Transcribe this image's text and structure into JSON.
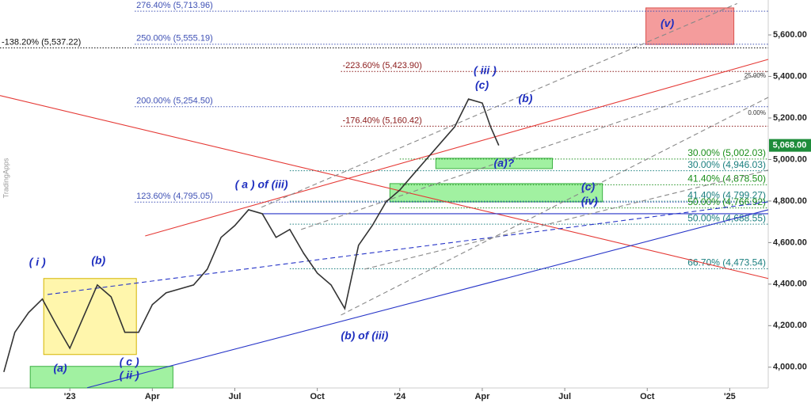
{
  "chart_data": {
    "type": "line",
    "watermark": "TradingApps",
    "xlim": [
      -2.54,
      25.4
    ],
    "ylim": [
      3900,
      5768
    ],
    "xticks": [
      {
        "value": 0,
        "label": "'23"
      },
      {
        "value": 3,
        "label": "Apr"
      },
      {
        "value": 6,
        "label": "Jul"
      },
      {
        "value": 9,
        "label": "Oct"
      },
      {
        "value": 12,
        "label": "'24"
      },
      {
        "value": 15,
        "label": "Apr"
      },
      {
        "value": 18,
        "label": "Jul"
      },
      {
        "value": 21,
        "label": "Oct"
      },
      {
        "value": 24,
        "label": "'25"
      }
    ],
    "yticks": [
      {
        "value": 4000,
        "label": "4,000.00"
      },
      {
        "value": 4200,
        "label": "4,200.00"
      },
      {
        "value": 4400,
        "label": "4,400.00"
      },
      {
        "value": 4600,
        "label": "4,600.00"
      },
      {
        "value": 4800,
        "label": "4,800.00"
      },
      {
        "value": 5000,
        "label": "5,000.00"
      },
      {
        "value": 5200,
        "label": "5,200.00"
      },
      {
        "value": 5400,
        "label": "5,400.00"
      },
      {
        "value": 5600,
        "label": "5,600.00"
      }
    ],
    "color": "#333333",
    "x": [
      -2.4,
      -2.0,
      -1.5,
      -1.0,
      -0.5,
      0,
      0.5,
      1.0,
      1.5,
      2.0,
      2.5,
      3.0,
      3.5,
      4.0,
      4.5,
      5.0,
      5.5,
      6.0,
      6.5,
      7.0,
      7.5,
      8.0,
      8.5,
      9.0,
      9.5,
      10.0,
      10.5,
      11.0,
      11.5,
      12.0,
      12.5,
      13.0,
      13.5,
      14.0,
      14.5,
      15.0,
      15.3,
      15.6
    ],
    "values": [
      3977,
      4168,
      4263,
      4328,
      4206,
      4091,
      4244,
      4396,
      4339,
      4168,
      4168,
      4301,
      4358,
      4377,
      4396,
      4472,
      4625,
      4682,
      4758,
      4739,
      4625,
      4663,
      4549,
      4453,
      4396,
      4282,
      4587,
      4682,
      4796,
      4853,
      4930,
      5006,
      5082,
      5158,
      5291,
      5272,
      5158,
      5068
    ],
    "last_price": {
      "value": 5068,
      "label": "5,068.00",
      "color": "#1e8c3a"
    },
    "levels": [
      {
        "label": "276.40% (5,713.96)",
        "value": 5713.96,
        "color": "#3f51b5",
        "from": 2.36,
        "align": "left"
      },
      {
        "label": "250.00% (5,555.19)",
        "value": 5555.19,
        "color": "#3f51b5",
        "from": 2.36,
        "align": "left"
      },
      {
        "label": "-138.20% (5,537.22)",
        "value": 5537.22,
        "color": "#111111",
        "from": -2.54,
        "align": "left"
      },
      {
        "label": "-223.60% (5,423.90)",
        "value": 5423.9,
        "color": "#8b1a1a",
        "from": 9.86,
        "align": "left"
      },
      {
        "label": "200.00% (5,254.50)",
        "value": 5254.5,
        "color": "#3f51b5",
        "from": 2.36,
        "align": "left"
      },
      {
        "label": "-176.40% (5,160.42)",
        "value": 5160.42,
        "color": "#8b1a1a",
        "from": 9.86,
        "align": "left"
      },
      {
        "label": "30.00% (5,002.03)",
        "value": 5002.03,
        "color": "#1b8f1b",
        "from": 12,
        "align": "right"
      },
      {
        "label": "30.00% (4,946.03)",
        "value": 4946.03,
        "color": "#1a7f7f",
        "from": 8,
        "align": "right"
      },
      {
        "label": "41.40% (4,878.50)",
        "value": 4878.5,
        "color": "#1b8f1b",
        "from": 12,
        "align": "right"
      },
      {
        "label": "123.60% (4,795.05)",
        "value": 4795.05,
        "color": "#3f51b5",
        "from": 2.36,
        "align": "left"
      },
      {
        "label": "41.40% (4,799.27)",
        "value": 4799.27,
        "color": "#1a7f7f",
        "from": 8,
        "align": "right"
      },
      {
        "label": "50.00% (4,766.92)",
        "value": 4766.92,
        "color": "#1b8f1b",
        "from": 12,
        "align": "right"
      },
      {
        "label": "50.00% (4,688.55)",
        "value": 4688.55,
        "color": "#1a7f7f",
        "from": 8,
        "align": "right"
      },
      {
        "label": "66.70% (4,473.54)",
        "value": 4473.54,
        "color": "#1a7f7f",
        "from": 8,
        "align": "right"
      }
    ],
    "channel_labels": [
      {
        "text": "25.00%",
        "x": 25.4,
        "y": 5402
      },
      {
        "text": "0.00%",
        "x": 25.4,
        "y": 5223
      }
    ],
    "trendlines": [
      {
        "x": [
          -2.54,
          25.4
        ],
        "y": [
          5308,
          4427
        ],
        "color": "#e53935",
        "dash": false
      },
      {
        "x": [
          2.74,
          25.4
        ],
        "y": [
          4632,
          5482
        ],
        "color": "#e53935",
        "dash": false
      },
      {
        "x": [
          0.63,
          25.4
        ],
        "y": [
          3901,
          4758
        ],
        "color": "#2735c8",
        "dash": false
      },
      {
        "x": [
          -0.81,
          25.4
        ],
        "y": [
          4350,
          4796
        ],
        "color": "#2735c8",
        "dash": true
      },
      {
        "x": [
          6.97,
          25.4
        ],
        "y": [
          4739,
          4739
        ],
        "color": "#2735c8",
        "dash": false
      },
      {
        "x": [
          6.97,
          24.27
        ],
        "y": [
          4770,
          5751
        ],
        "color": "#888888",
        "dash": true
      },
      {
        "x": [
          8.41,
          25.4
        ],
        "y": [
          4663,
          5425
        ],
        "color": "#888888",
        "dash": true
      },
      {
        "x": [
          9.86,
          25.4
        ],
        "y": [
          4251,
          5299
        ],
        "color": "#888888",
        "dash": true
      },
      {
        "x": [
          10.72,
          25.4
        ],
        "y": [
          4472,
          4949
        ],
        "color": "#888888",
        "dash": true
      }
    ],
    "boxes": [
      {
        "x": [
          -0.95,
          2.42
        ],
        "y": [
          4061,
          4427
        ],
        "color": "#fff59d",
        "border": "#d4b400"
      },
      {
        "x": [
          -1.44,
          3.75
        ],
        "y": [
          3900,
          4004
        ],
        "color": "#90ee90",
        "border": "#3cb043"
      },
      {
        "x": [
          13.31,
          17.55
        ],
        "y": [
          4956,
          5006
        ],
        "color": "#90ee90",
        "border": "#3cb043"
      },
      {
        "x": [
          11.64,
          19.37
        ],
        "y": [
          4796,
          4884
        ],
        "color": "#90ee90",
        "border": "#3cb043"
      },
      {
        "x": [
          20.95,
          24.15
        ],
        "y": [
          5554,
          5730
        ],
        "color": "#f28b8b",
        "border": "#d9534f"
      }
    ],
    "annotations": [
      {
        "text": "( i )",
        "x": -1.18,
        "y": 4503
      },
      {
        "text": "(b)",
        "x": 1.04,
        "y": 4510
      },
      {
        "text": "(a)",
        "x": -0.35,
        "y": 3992
      },
      {
        "text": "( c )",
        "x": 2.16,
        "y": 4023
      },
      {
        "text": "( ii )",
        "x": 2.16,
        "y": 3958
      },
      {
        "text": "( a ) of (iii)",
        "x": 6.97,
        "y": 4876
      },
      {
        "text": "(b) of (iii)",
        "x": 10.72,
        "y": 4149
      },
      {
        "text": "( iii )",
        "x": 15.1,
        "y": 5425
      },
      {
        "text": "(c)",
        "x": 14.99,
        "y": 5356
      },
      {
        "text": "(b)",
        "x": 16.57,
        "y": 5291
      },
      {
        "text": "(a)?",
        "x": 15.79,
        "y": 4979
      },
      {
        "text": "(c)",
        "x": 18.85,
        "y": 4865
      },
      {
        "text": "(iv)",
        "x": 18.9,
        "y": 4796
      },
      {
        "text": "(v)",
        "x": 21.73,
        "y": 5653
      }
    ]
  }
}
